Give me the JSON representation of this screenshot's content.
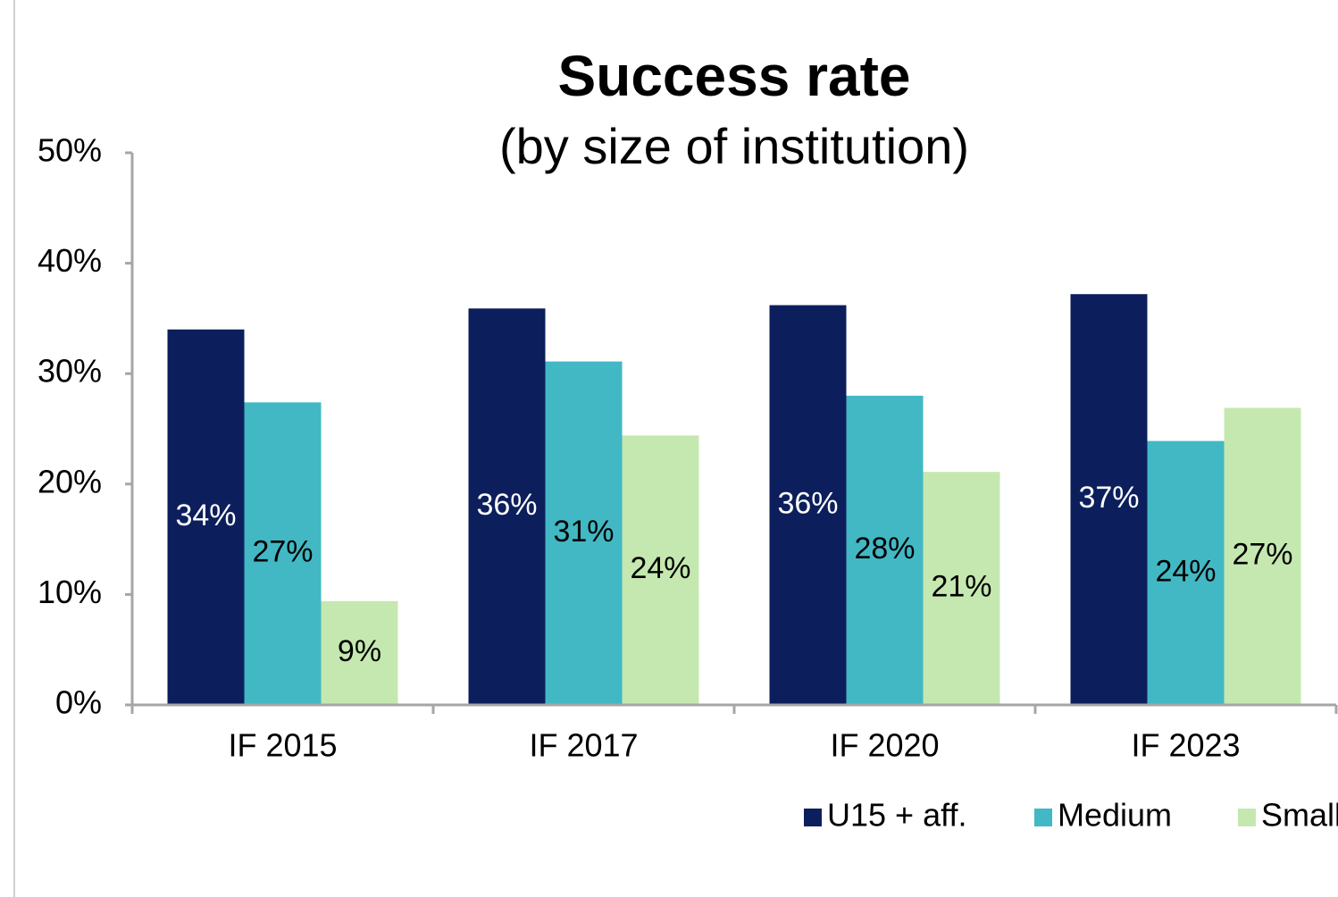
{
  "chart_data": {
    "type": "bar",
    "title": "Success rate",
    "subtitle": "(by size of institution)",
    "categories": [
      "IF 2015",
      "IF 2017",
      "IF 2020",
      "IF 2023"
    ],
    "series": [
      {
        "name": "U15 + aff.",
        "color": "#0c1f5c",
        "label_color": "#ffffff",
        "values": [
          34,
          35.9,
          36.2,
          37.2
        ],
        "value_labels": [
          "34%",
          "36%",
          "36%",
          "37%"
        ]
      },
      {
        "name": "Medium",
        "color": "#42b8c4",
        "label_color": "#000000",
        "values": [
          27.4,
          31.1,
          28,
          23.9
        ],
        "value_labels": [
          "27%",
          "31%",
          "28%",
          "24%"
        ]
      },
      {
        "name": "Small",
        "color": "#c5e8b0",
        "label_color": "#000000",
        "values": [
          9.4,
          24.4,
          21.1,
          26.9
        ],
        "value_labels": [
          "9%",
          "24%",
          "21%",
          "27%"
        ]
      }
    ],
    "ylim": [
      0,
      50
    ],
    "yticks": [
      {
        "value": 0,
        "label": "0%"
      },
      {
        "value": 10,
        "label": "10%"
      },
      {
        "value": 20,
        "label": "20%"
      },
      {
        "value": 30,
        "label": "30%"
      },
      {
        "value": 40,
        "label": "40%"
      },
      {
        "value": 50,
        "label": "50%"
      }
    ],
    "legend": "bottom-right"
  }
}
